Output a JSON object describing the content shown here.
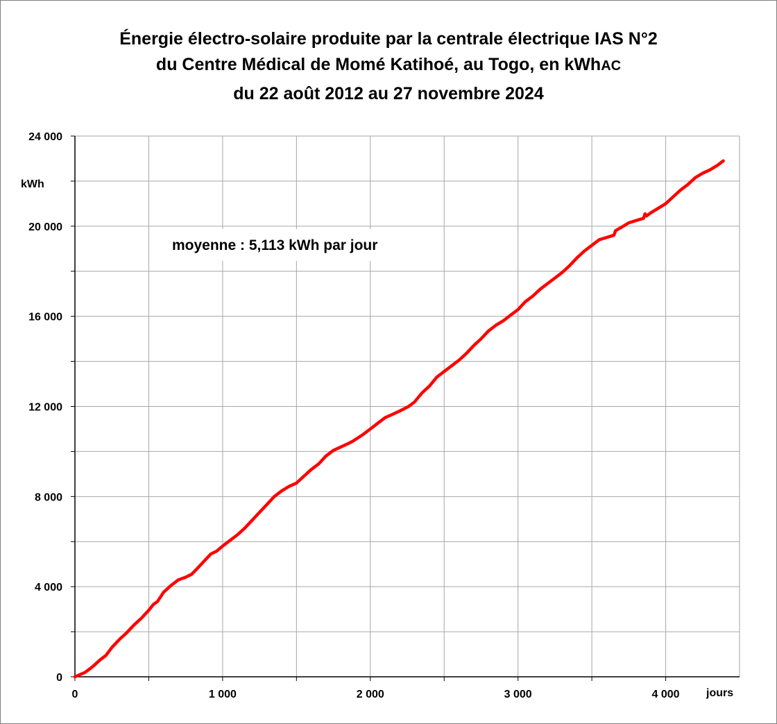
{
  "chart_data": {
    "type": "line",
    "title_lines": [
      "Énergie électro-solaire produite par la centrale électrique IAS N°2",
      "du Centre Médical de Momé Katihoé, au Togo, en kWh",
      "du  22 août 2012 au 27 novembre 2024"
    ],
    "title_suffix": "AC",
    "ylabel": "kWh",
    "xlabel": "jours",
    "annotation": "moyenne :  5,113 kWh par jour",
    "xlim": [
      0,
      4500
    ],
    "ylim": [
      0,
      24000
    ],
    "x_major_ticks": [
      0,
      1000,
      2000,
      3000,
      4000
    ],
    "x_tick_labels": [
      "0",
      "1 000",
      "2 000",
      "3 000",
      "4 000"
    ],
    "x_minor_ticks": [
      500,
      1500,
      2500,
      3500
    ],
    "y_major_ticks": [
      0,
      4000,
      8000,
      12000,
      16000,
      20000,
      24000
    ],
    "y_tick_labels": [
      "0",
      "4 000",
      "8 000",
      "12 000",
      "16 000",
      "20 000",
      "24 000"
    ],
    "y_minor_ticks": [
      2000,
      6000,
      10000,
      14000,
      18000,
      22000
    ],
    "grid": true,
    "colors": {
      "line": "#ff0000",
      "grid": "#a6a6a6",
      "axis": "#000000"
    },
    "series": [
      {
        "points": [
          [
            0,
            0
          ],
          [
            70,
            200
          ],
          [
            120,
            450
          ],
          [
            170,
            750
          ],
          [
            210,
            950
          ],
          [
            250,
            1300
          ],
          [
            300,
            1650
          ],
          [
            350,
            1950
          ],
          [
            400,
            2300
          ],
          [
            450,
            2600
          ],
          [
            500,
            2950
          ],
          [
            530,
            3200
          ],
          [
            560,
            3350
          ],
          [
            600,
            3750
          ],
          [
            650,
            4050
          ],
          [
            700,
            4300
          ],
          [
            750,
            4420
          ],
          [
            790,
            4550
          ],
          [
            820,
            4750
          ],
          [
            870,
            5100
          ],
          [
            920,
            5450
          ],
          [
            960,
            5580
          ],
          [
            1000,
            5800
          ],
          [
            1050,
            6050
          ],
          [
            1100,
            6300
          ],
          [
            1150,
            6600
          ],
          [
            1200,
            6950
          ],
          [
            1250,
            7300
          ],
          [
            1300,
            7650
          ],
          [
            1350,
            8000
          ],
          [
            1400,
            8250
          ],
          [
            1450,
            8450
          ],
          [
            1500,
            8600
          ],
          [
            1550,
            8900
          ],
          [
            1600,
            9200
          ],
          [
            1650,
            9450
          ],
          [
            1700,
            9800
          ],
          [
            1750,
            10050
          ],
          [
            1800,
            10200
          ],
          [
            1850,
            10350
          ],
          [
            1880,
            10450
          ],
          [
            1950,
            10750
          ],
          [
            2000,
            11000
          ],
          [
            2050,
            11250
          ],
          [
            2100,
            11500
          ],
          [
            2150,
            11650
          ],
          [
            2200,
            11800
          ],
          [
            2260,
            12000
          ],
          [
            2300,
            12200
          ],
          [
            2350,
            12600
          ],
          [
            2400,
            12900
          ],
          [
            2450,
            13300
          ],
          [
            2500,
            13550
          ],
          [
            2550,
            13800
          ],
          [
            2600,
            14050
          ],
          [
            2650,
            14350
          ],
          [
            2700,
            14700
          ],
          [
            2750,
            15000
          ],
          [
            2800,
            15350
          ],
          [
            2850,
            15600
          ],
          [
            2900,
            15800
          ],
          [
            2950,
            16050
          ],
          [
            3000,
            16300
          ],
          [
            3050,
            16650
          ],
          [
            3100,
            16900
          ],
          [
            3150,
            17200
          ],
          [
            3200,
            17450
          ],
          [
            3250,
            17700
          ],
          [
            3300,
            17950
          ],
          [
            3350,
            18250
          ],
          [
            3400,
            18600
          ],
          [
            3450,
            18900
          ],
          [
            3500,
            19150
          ],
          [
            3550,
            19400
          ],
          [
            3600,
            19500
          ],
          [
            3650,
            19600
          ],
          [
            3660,
            19800
          ],
          [
            3700,
            19950
          ],
          [
            3750,
            20150
          ],
          [
            3800,
            20250
          ],
          [
            3850,
            20350
          ],
          [
            3860,
            20550
          ],
          [
            3870,
            20450
          ],
          [
            3900,
            20600
          ],
          [
            3950,
            20800
          ],
          [
            4000,
            21000
          ],
          [
            4050,
            21300
          ],
          [
            4100,
            21600
          ],
          [
            4150,
            21850
          ],
          [
            4200,
            22150
          ],
          [
            4250,
            22350
          ],
          [
            4300,
            22500
          ],
          [
            4350,
            22700
          ],
          [
            4390,
            22900
          ]
        ]
      }
    ]
  }
}
